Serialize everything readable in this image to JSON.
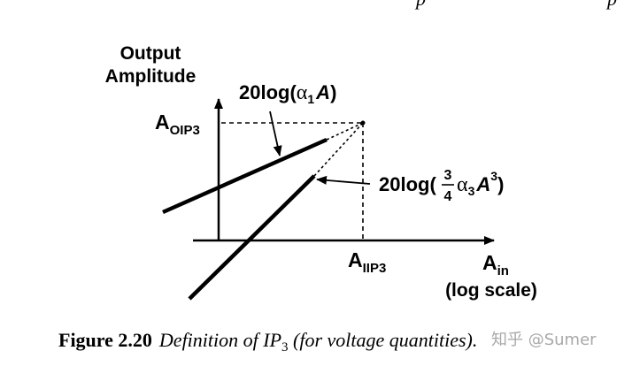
{
  "top_text": "p",
  "top_text_right": "p",
  "y_axis_label": {
    "line1": "Output",
    "line2": "Amplitude"
  },
  "x_axis_label": {
    "main": "A",
    "sub": "in",
    "scale": "(log scale)"
  },
  "aoip3_label": {
    "main": "A",
    "sub": "OIP3"
  },
  "aiip3_label": {
    "main": "A",
    "sub": "IIP3"
  },
  "linear_label": {
    "prefix": "20log(",
    "alpha": "α",
    "alpha_sub": "1",
    "var": "A",
    "suffix": ")"
  },
  "cubic_label": {
    "prefix": "20log(",
    "frac_num": "3",
    "frac_den": "4",
    "alpha": "α",
    "alpha_sub": "3",
    "var": "A",
    "exp": "3",
    "suffix": ")"
  },
  "caption": {
    "number": "Figure 2.20",
    "text_a": "Definition of IP",
    "text_sub": "3",
    "text_b": " (for voltage quantities)."
  },
  "watermark": "知乎 @Sumer"
}
